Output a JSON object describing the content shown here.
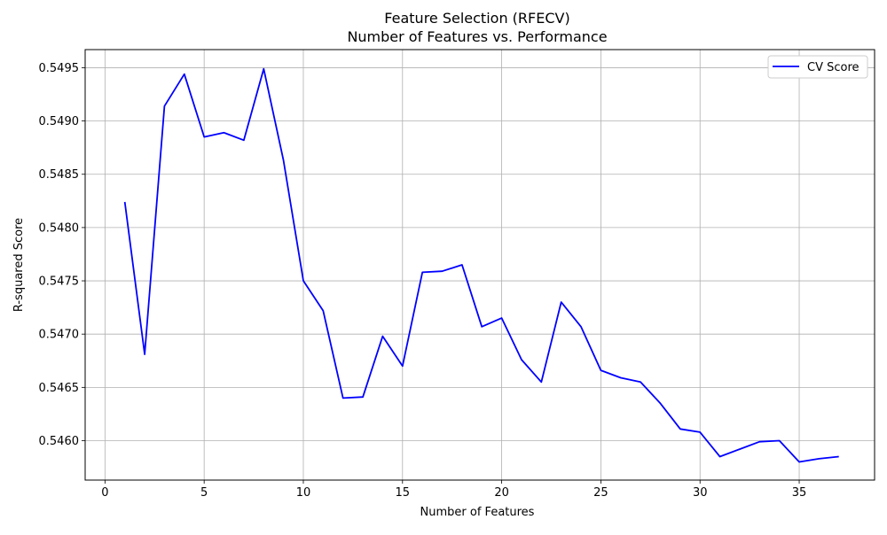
{
  "chart_data": {
    "type": "line",
    "title": "Feature Selection (RFECV)",
    "subtitle": "Number of Features vs. Performance",
    "xlabel": "Number of Features",
    "ylabel": "R-squared Score",
    "xlim": [
      -1,
      38.8
    ],
    "ylim": [
      0.54563,
      0.54967
    ],
    "xticks": [
      0,
      5,
      10,
      15,
      20,
      25,
      30,
      35
    ],
    "yticks": [
      0.546,
      0.5465,
      0.547,
      0.5475,
      0.548,
      0.5485,
      0.549,
      0.5495
    ],
    "ytick_labels": [
      "0.5460",
      "0.5465",
      "0.5470",
      "0.5475",
      "0.5480",
      "0.5485",
      "0.5490",
      "0.5495"
    ],
    "grid": true,
    "legend_position": "top-right",
    "series": [
      {
        "name": "CV Score",
        "color": "#0000ff",
        "x": [
          1,
          2,
          3,
          4,
          5,
          6,
          7,
          8,
          9,
          10,
          11,
          12,
          13,
          14,
          15,
          16,
          17,
          18,
          19,
          20,
          21,
          22,
          23,
          24,
          25,
          26,
          27,
          28,
          29,
          30,
          31,
          32,
          33,
          34,
          35,
          36,
          37
        ],
        "y": [
          0.54824,
          0.54681,
          0.54914,
          0.54944,
          0.54885,
          0.54889,
          0.54882,
          0.54949,
          0.54863,
          0.5475,
          0.54722,
          0.5464,
          0.54641,
          0.54698,
          0.5467,
          0.54758,
          0.54759,
          0.54765,
          0.54707,
          0.54715,
          0.54676,
          0.54655,
          0.5473,
          0.54707,
          0.54666,
          0.54659,
          0.54655,
          0.54635,
          0.54611,
          0.54608,
          0.54585,
          0.54592,
          0.54599,
          0.546,
          0.5458,
          0.54583,
          0.54585
        ]
      }
    ]
  }
}
